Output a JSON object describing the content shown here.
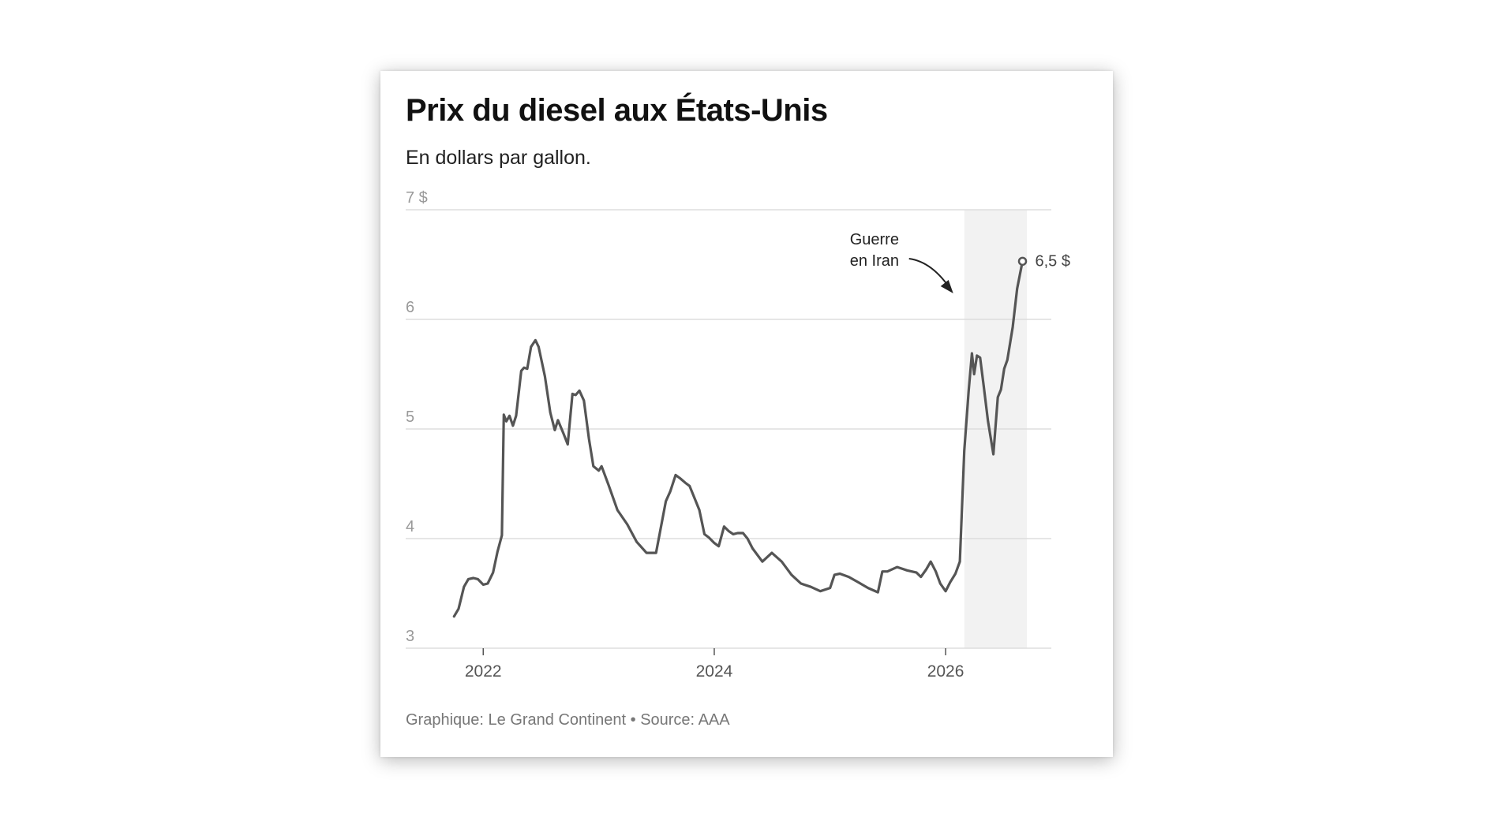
{
  "title": "Prix du diesel aux États-Unis",
  "subtitle": "En dollars par gallon.",
  "footer": "Graphique: Le Grand Continent • Source: AAA",
  "colors": {
    "line": "#555555",
    "grid": "#dddddd",
    "highlight": "#f2f2f2",
    "tick_text": "#999999",
    "year_text": "#555555"
  },
  "chart_data": {
    "type": "line",
    "title": "Prix du diesel aux États-Unis",
    "subtitle": "En dollars par gallon.",
    "xlabel": "",
    "ylabel": "",
    "x_ticks": [
      "2022",
      "2024",
      "2026"
    ],
    "y_ticks": [
      "3",
      "4",
      "5",
      "6",
      "7 $"
    ],
    "ylim": [
      3,
      7
    ],
    "xlim": [
      "2021-05-01",
      "2026-12-01"
    ],
    "grid": true,
    "highlight_period": {
      "start": "2026-03-01",
      "end": "2026-09-15"
    },
    "annotation": {
      "text_lines": [
        "Guerre",
        "en Iran"
      ],
      "arrow": "points down-right to the highlighted period"
    },
    "end_label": "6,5 $",
    "series": [
      {
        "values": [
          [
            "2021-10-01",
            3.29
          ],
          [
            "2021-10-15",
            3.36
          ],
          [
            "2021-11-01",
            3.56
          ],
          [
            "2021-11-15",
            3.63
          ],
          [
            "2021-12-01",
            3.64
          ],
          [
            "2021-12-15",
            3.63
          ],
          [
            "2022-01-01",
            3.58
          ],
          [
            "2022-01-15",
            3.59
          ],
          [
            "2022-02-01",
            3.69
          ],
          [
            "2022-02-15",
            3.88
          ],
          [
            "2022-03-01",
            4.03
          ],
          [
            "2022-03-07",
            5.13
          ],
          [
            "2022-03-15",
            5.07
          ],
          [
            "2022-03-25",
            5.12
          ],
          [
            "2022-04-05",
            5.03
          ],
          [
            "2022-04-15",
            5.12
          ],
          [
            "2022-05-01",
            5.53
          ],
          [
            "2022-05-10",
            5.56
          ],
          [
            "2022-05-20",
            5.55
          ],
          [
            "2022-06-01",
            5.75
          ],
          [
            "2022-06-15",
            5.81
          ],
          [
            "2022-06-25",
            5.75
          ],
          [
            "2022-07-15",
            5.48
          ],
          [
            "2022-08-01",
            5.15
          ],
          [
            "2022-08-15",
            4.99
          ],
          [
            "2022-08-25",
            5.08
          ],
          [
            "2022-09-10",
            4.97
          ],
          [
            "2022-09-25",
            4.86
          ],
          [
            "2022-10-10",
            5.32
          ],
          [
            "2022-10-20",
            5.31
          ],
          [
            "2022-11-01",
            5.35
          ],
          [
            "2022-11-15",
            5.26
          ],
          [
            "2022-12-01",
            4.91
          ],
          [
            "2022-12-15",
            4.66
          ],
          [
            "2023-01-01",
            4.62
          ],
          [
            "2023-01-10",
            4.66
          ],
          [
            "2023-02-01",
            4.49
          ],
          [
            "2023-03-01",
            4.26
          ],
          [
            "2023-04-01",
            4.13
          ],
          [
            "2023-05-01",
            3.97
          ],
          [
            "2023-06-01",
            3.87
          ],
          [
            "2023-07-01",
            3.87
          ],
          [
            "2023-08-01",
            4.34
          ],
          [
            "2023-08-15",
            4.43
          ],
          [
            "2023-09-01",
            4.58
          ],
          [
            "2023-09-15",
            4.55
          ],
          [
            "2023-10-01",
            4.51
          ],
          [
            "2023-10-15",
            4.48
          ],
          [
            "2023-11-01",
            4.36
          ],
          [
            "2023-11-15",
            4.26
          ],
          [
            "2023-12-01",
            4.04
          ],
          [
            "2023-12-15",
            4.01
          ],
          [
            "2024-01-01",
            3.96
          ],
          [
            "2024-01-15",
            3.93
          ],
          [
            "2024-02-01",
            4.11
          ],
          [
            "2024-02-15",
            4.07
          ],
          [
            "2024-03-01",
            4.04
          ],
          [
            "2024-03-15",
            4.05
          ],
          [
            "2024-04-01",
            4.05
          ],
          [
            "2024-04-15",
            4.0
          ],
          [
            "2024-05-01",
            3.91
          ],
          [
            "2024-06-01",
            3.79
          ],
          [
            "2024-07-01",
            3.87
          ],
          [
            "2024-08-01",
            3.79
          ],
          [
            "2024-09-01",
            3.67
          ],
          [
            "2024-10-01",
            3.59
          ],
          [
            "2024-11-01",
            3.56
          ],
          [
            "2024-12-01",
            3.52
          ],
          [
            "2025-01-01",
            3.55
          ],
          [
            "2025-01-15",
            3.67
          ],
          [
            "2025-02-01",
            3.68
          ],
          [
            "2025-03-01",
            3.65
          ],
          [
            "2025-04-01",
            3.6
          ],
          [
            "2025-05-01",
            3.55
          ],
          [
            "2025-06-01",
            3.51
          ],
          [
            "2025-06-15",
            3.7
          ],
          [
            "2025-07-01",
            3.7
          ],
          [
            "2025-08-01",
            3.74
          ],
          [
            "2025-09-01",
            3.71
          ],
          [
            "2025-10-01",
            3.69
          ],
          [
            "2025-10-15",
            3.65
          ],
          [
            "2025-11-01",
            3.72
          ],
          [
            "2025-11-15",
            3.79
          ],
          [
            "2025-12-01",
            3.7
          ],
          [
            "2025-12-15",
            3.59
          ],
          [
            "2026-01-01",
            3.52
          ],
          [
            "2026-01-15",
            3.6
          ],
          [
            "2026-02-01",
            3.68
          ],
          [
            "2026-02-15",
            3.79
          ],
          [
            "2026-03-01",
            4.8
          ],
          [
            "2026-03-15",
            5.35
          ],
          [
            "2026-03-25",
            5.69
          ],
          [
            "2026-04-01",
            5.5
          ],
          [
            "2026-04-10",
            5.67
          ],
          [
            "2026-04-20",
            5.65
          ],
          [
            "2026-05-01",
            5.4
          ],
          [
            "2026-05-15",
            5.07
          ],
          [
            "2026-06-01",
            4.77
          ],
          [
            "2026-06-15",
            5.29
          ],
          [
            "2026-06-25",
            5.36
          ],
          [
            "2026-07-05",
            5.55
          ],
          [
            "2026-07-15",
            5.63
          ],
          [
            "2026-08-01",
            5.93
          ],
          [
            "2026-08-15",
            6.28
          ],
          [
            "2026-09-01",
            6.53
          ]
        ]
      }
    ]
  }
}
